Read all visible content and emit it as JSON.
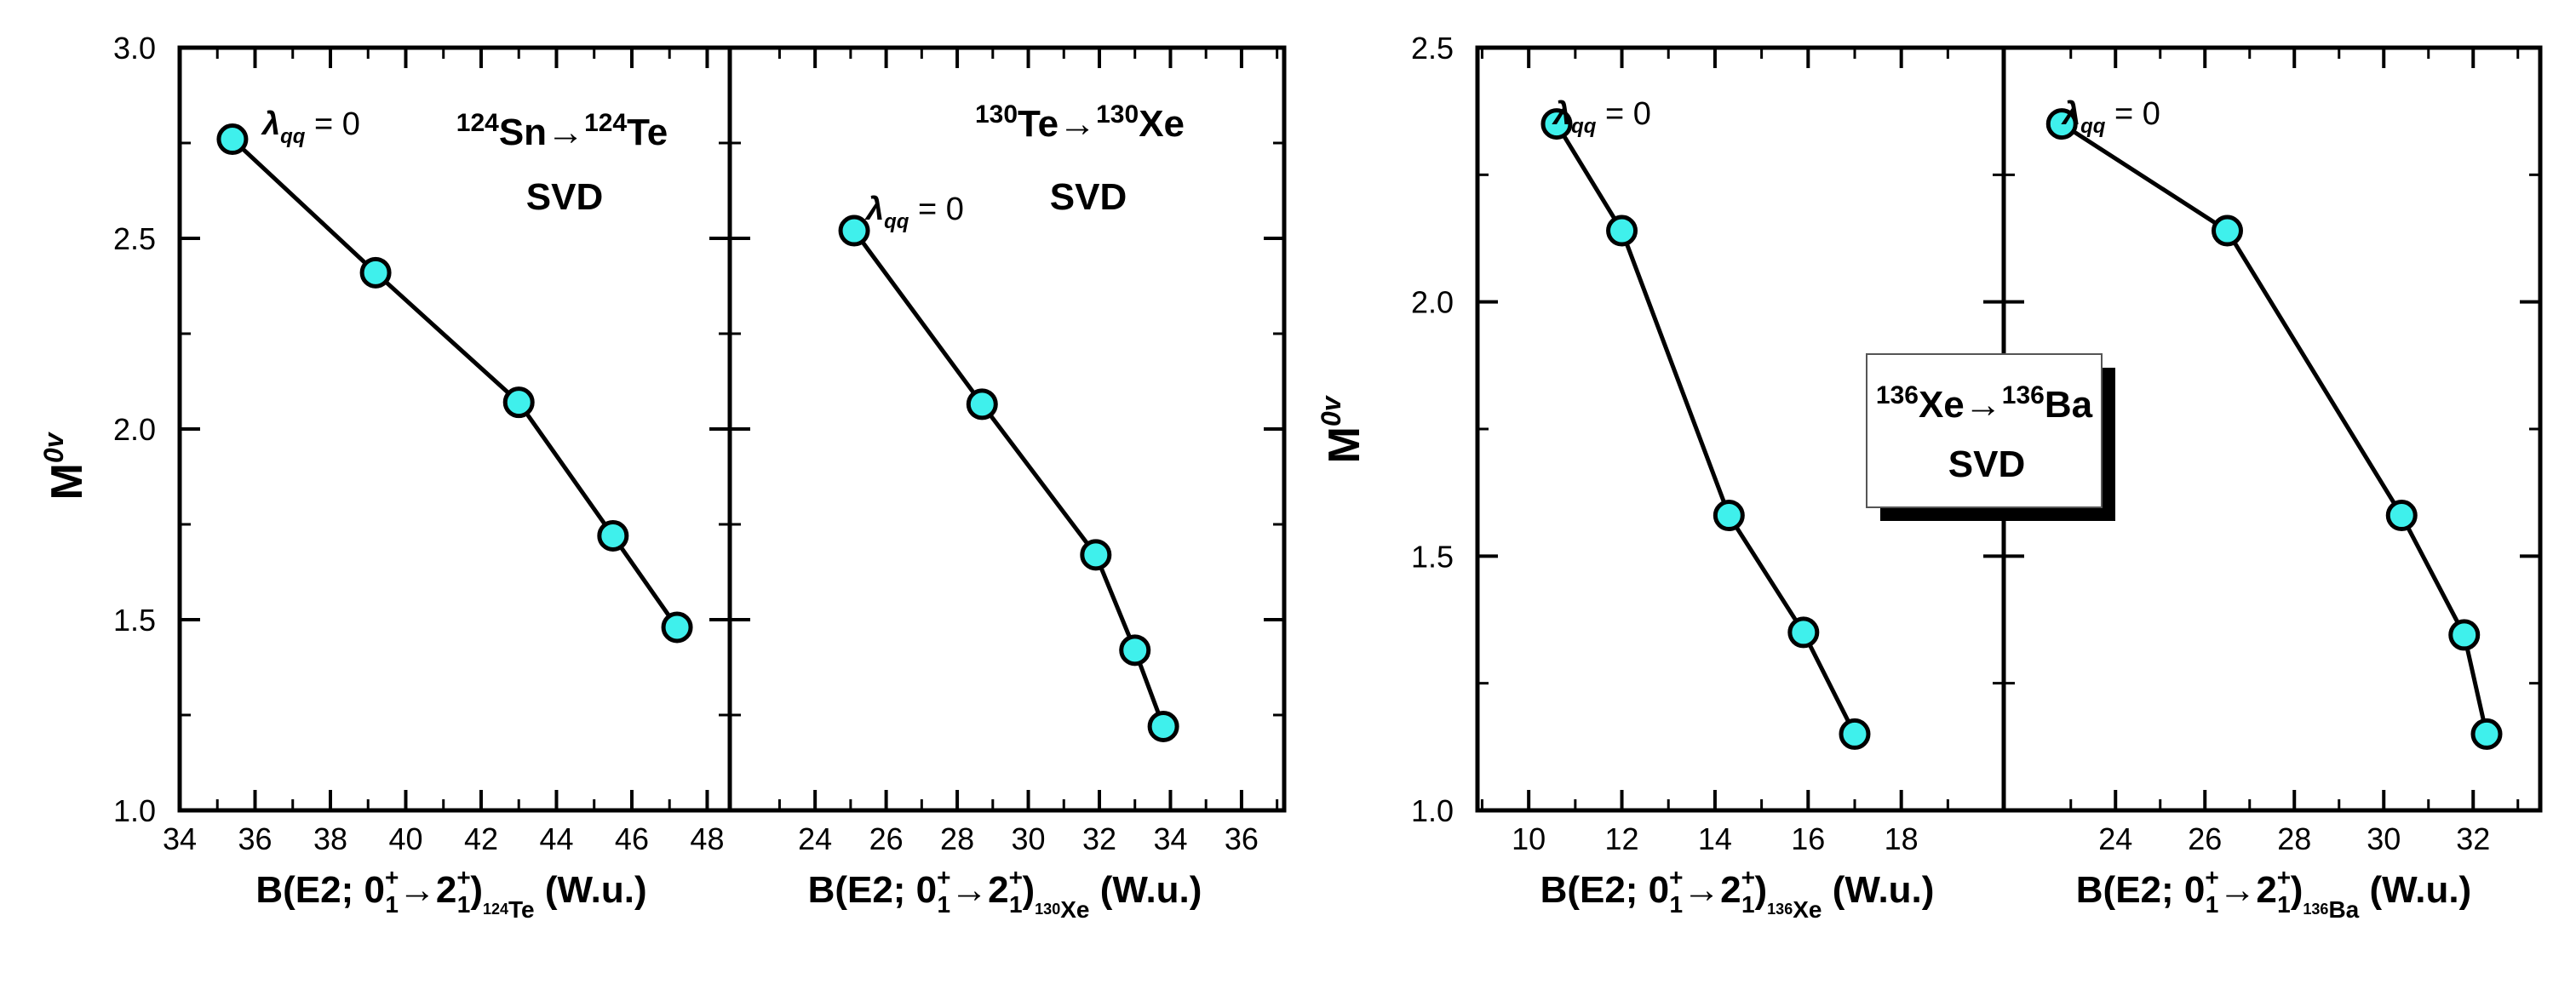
{
  "colors": {
    "marker_fill": "#3ff0ec",
    "line": "#000000",
    "axis": "#000000"
  },
  "chart_data": [
    {
      "type": "line",
      "panel": "left-a",
      "title_parent": "124",
      "title_parent_symbol": "Sn",
      "title_daughter": "124",
      "title_daughter_symbol": "Te",
      "method": "SVD",
      "ylabel_main": "M",
      "ylabel_sup": "0v",
      "xlabel_pre": "B(E2; 0",
      "xlabel_sup1": "+",
      "xlabel_sub1": "1",
      "xlabel_sup2": "+",
      "xlabel_sub2": "1",
      "xlabel_nuc_mass": "124",
      "xlabel_nuc_sym": "Te",
      "xlabel_post": " (W.u.)",
      "xlim": [
        34,
        48.6
      ],
      "ylim": [
        1.0,
        3.0
      ],
      "xticks": [
        "34",
        "36",
        "38",
        "40",
        "42",
        "44",
        "46",
        "48"
      ],
      "yticks": [
        "1.0",
        "1.5",
        "2.0",
        "2.5",
        "3.0"
      ],
      "x": [
        35.4,
        39.2,
        43.0,
        45.5,
        47.2
      ],
      "y": [
        2.76,
        2.41,
        2.07,
        1.72,
        1.48
      ],
      "annotation_lambda": "λ",
      "annotation_lambda_sub": "qq",
      "annotation_lambda_value": " = 0"
    },
    {
      "type": "line",
      "panel": "left-b",
      "title_parent": "130",
      "title_parent_symbol": "Te",
      "title_daughter": "130",
      "title_daughter_symbol": "Xe",
      "method": "SVD",
      "xlabel_pre": "B(E2; 0",
      "xlabel_sup1": "+",
      "xlabel_sub1": "1",
      "xlabel_sup2": "+",
      "xlabel_sub2": "1",
      "xlabel_nuc_mass": "130",
      "xlabel_nuc_sym": "Xe",
      "xlabel_post": " (W.u.)",
      "xlim": [
        21.6,
        37.2
      ],
      "ylim": [
        1.0,
        3.0
      ],
      "xticks": [
        "24",
        "26",
        "28",
        "30",
        "32",
        "34",
        "36"
      ],
      "x": [
        25.1,
        28.7,
        31.9,
        33.0,
        33.8
      ],
      "y": [
        2.52,
        2.065,
        1.67,
        1.42,
        1.22
      ],
      "annotation_lambda": "λ",
      "annotation_lambda_sub": "qq",
      "annotation_lambda_value": " = 0"
    },
    {
      "type": "line",
      "panel": "right-a",
      "title_parent": "136",
      "title_parent_symbol": "Xe",
      "title_daughter": "136",
      "title_daughter_symbol": "Ba",
      "method": "SVD",
      "ylabel_main": "M",
      "ylabel_sup": "0v",
      "xlabel_pre": "B(E2; 0",
      "xlabel_sup1": "+",
      "xlabel_sub1": "1",
      "xlabel_sup2": "+",
      "xlabel_sub2": "1",
      "xlabel_nuc_mass": "136",
      "xlabel_nuc_sym": "Xe",
      "xlabel_post": " (W.u.)",
      "xlim": [
        8.9,
        20.2
      ],
      "ylim": [
        1.0,
        2.5
      ],
      "xticks": [
        "10",
        "12",
        "14",
        "16",
        "18"
      ],
      "yticks": [
        "1.0",
        "1.5",
        "2.0",
        "2.5"
      ],
      "x": [
        10.6,
        12.0,
        14.3,
        15.9,
        17.0
      ],
      "y": [
        2.35,
        2.14,
        1.58,
        1.35,
        1.15
      ],
      "annotation_lambda": "λ",
      "annotation_lambda_sub": "qq",
      "annotation_lambda_value": " = 0"
    },
    {
      "type": "line",
      "panel": "right-b",
      "xlabel_pre": "B(E2; 0",
      "xlabel_sup1": "+",
      "xlabel_sub1": "1",
      "xlabel_sup2": "+",
      "xlabel_sub2": "1",
      "xlabel_nuc_mass": "136",
      "xlabel_nuc_sym": "Ba",
      "xlabel_post": " (W.u.)",
      "xlim": [
        21.5,
        33.5
      ],
      "ylim": [
        1.0,
        2.5
      ],
      "xticks": [
        "24",
        "26",
        "28",
        "30",
        "32"
      ],
      "x": [
        22.8,
        26.5,
        30.4,
        31.8,
        32.3
      ],
      "y": [
        2.35,
        2.14,
        1.58,
        1.345,
        1.15
      ],
      "annotation_lambda": "λ",
      "annotation_lambda_sub": "qq",
      "annotation_lambda_value": " = 0"
    }
  ]
}
